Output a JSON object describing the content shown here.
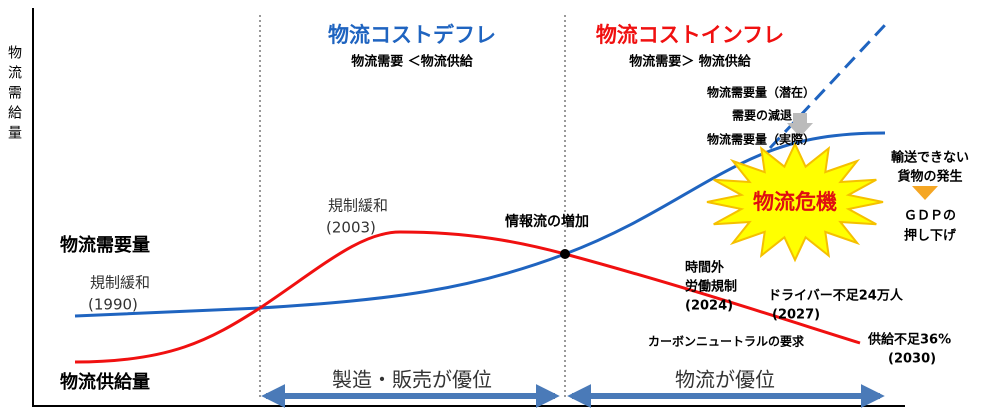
{
  "axis_label": "物流需給量",
  "deflation": {
    "title": "物流コストデフレ",
    "subtitle": "物流需要 ＜物流供給"
  },
  "inflation": {
    "title": "物流コストインフレ",
    "subtitle": "物流需要＞ 物流供給"
  },
  "demand_notes": [
    "物流需要量（潜在）",
    "需要の減退",
    "物流需要量（実際）"
  ],
  "crisis": "物流危機",
  "outcome": {
    "lines": [
      "輸送できない",
      "貨物の発生"
    ],
    "gdp": [
      "ＧＤＰの",
      "押し下げ"
    ]
  },
  "events": {
    "deregulation_2003": [
      "規制緩和",
      "(2003)"
    ],
    "info_flow": "情報流の増加",
    "deregulation_1990": [
      "規制緩和",
      "(1990)"
    ],
    "overtime": [
      "時間外",
      "労働規制",
      "(2024)"
    ],
    "driver": [
      "ドライバー不足24万人",
      "(2027)"
    ],
    "carbon": "カーボンニュートラルの要求",
    "shortage": [
      "供給不足36%",
      "(2030)"
    ]
  },
  "curves": {
    "demand": "物流需要量",
    "supply": "物流供給量"
  },
  "phases": [
    "製造・販売が優位",
    "物流が優位"
  ]
}
